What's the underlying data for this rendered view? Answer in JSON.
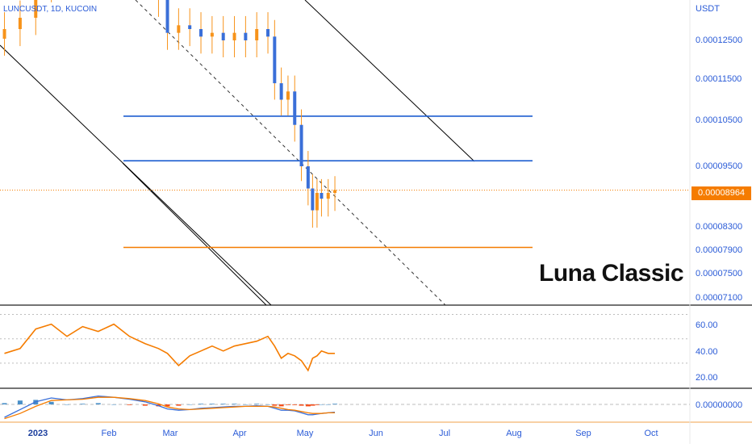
{
  "header": {
    "symbol_label": "LUNCUSDT, 1D, KUCOIN",
    "watermark": "Luna Classic"
  },
  "price_axis": {
    "unit": "USDT",
    "ticks": [
      "0.00012500",
      "0.00011500",
      "0.00010500",
      "0.00009500",
      "0.00008300",
      "0.00007900",
      "0.00007500",
      "0.00007100"
    ],
    "last_price_label": "0.00008964"
  },
  "rsi_axis": {
    "ticks": [
      "60.00",
      "40.00",
      "20.00"
    ]
  },
  "macd_axis": {
    "ticks": [
      "0.00000000"
    ]
  },
  "time_axis": {
    "ticks": [
      "2023",
      "Feb",
      "Mar",
      "Apr",
      "May",
      "Jun",
      "Jul",
      "Aug",
      "Sep",
      "Oct"
    ]
  },
  "colors": {
    "candle": "#f7931a",
    "candle_down": "#3a6fd8",
    "resistance": "#1e5fd1",
    "support": "#f57c00",
    "channel": "#000000",
    "rsi_line": "#f57c00",
    "macd_line": "#3a6fd8",
    "signal_line": "#f57c00",
    "hist_up": "#4a90c8",
    "hist_down": "#f4511e",
    "last_price_bg": "#f57c00"
  },
  "chart_data": [
    {
      "type": "candlestick",
      "title": "LUNCUSDT, 1D, KUCOIN",
      "ylabel": "USDT",
      "ylim": [
        7e-05,
        0.000135
      ],
      "x_axis": "date",
      "x_range": [
        "2022-12-20",
        "2023-10-25"
      ],
      "close_series": {
        "x": [
          "2022-12-22",
          "2022-12-29",
          "2023-01-05",
          "2023-01-12",
          "2023-01-19",
          "2023-01-26",
          "2023-02-02",
          "2023-02-09",
          "2023-02-16",
          "2023-02-23",
          "2023-03-01",
          "2023-03-05",
          "2023-03-10",
          "2023-03-15",
          "2023-03-20",
          "2023-03-25",
          "2023-03-30",
          "2023-04-04",
          "2023-04-09",
          "2023-04-14",
          "2023-04-19",
          "2023-04-22",
          "2023-04-25",
          "2023-04-28",
          "2023-05-01",
          "2023-05-04",
          "2023-05-07",
          "2023-05-09",
          "2023-05-11",
          "2023-05-13",
          "2023-05-16",
          "2023-05-19"
        ],
        "close": [
          0.000128,
          0.000131,
          0.00014,
          0.00015,
          0.000143,
          0.000148,
          0.000155,
          0.00015,
          0.000146,
          0.000148,
          0.000136,
          0.000127,
          0.000129,
          0.000128,
          0.000126,
          0.000127,
          0.000125,
          0.000127,
          0.000125,
          0.000128,
          0.000126,
          0.000114,
          0.00011,
          0.000112,
          0.000104,
          9.5e-05,
          9e-05,
          8.6e-05,
          8.9e-05,
          8.8e-05,
          8.9e-05,
          8.964e-05
        ]
      },
      "horizontal_levels": [
        {
          "value": 0.000106,
          "label": "resistance",
          "color": "#1e5fd1"
        },
        {
          "value": 9.62e-05,
          "label": "resistance",
          "color": "#1e5fd1"
        },
        {
          "value": 7.95e-05,
          "label": "support",
          "color": "#f57c00"
        }
      ],
      "last_price": 8.964e-05,
      "annotations": [
        "Luna Classic"
      ]
    },
    {
      "type": "line",
      "ylabel": "RSI",
      "ylim": [
        10,
        75
      ],
      "bands": [
        30,
        50,
        70
      ],
      "x": [
        "2022-12-22",
        "2022-12-29",
        "2023-01-05",
        "2023-01-12",
        "2023-01-19",
        "2023-01-26",
        "2023-02-02",
        "2023-02-09",
        "2023-02-16",
        "2023-02-23",
        "2023-03-01",
        "2023-03-05",
        "2023-03-10",
        "2023-03-15",
        "2023-03-20",
        "2023-03-25",
        "2023-03-30",
        "2023-04-04",
        "2023-04-09",
        "2023-04-14",
        "2023-04-19",
        "2023-04-22",
        "2023-04-25",
        "2023-04-28",
        "2023-05-01",
        "2023-05-04",
        "2023-05-07",
        "2023-05-09",
        "2023-05-11",
        "2023-05-13",
        "2023-05-16",
        "2023-05-19"
      ],
      "values": [
        38,
        42,
        58,
        62,
        52,
        60,
        56,
        62,
        52,
        46,
        42,
        38,
        28,
        36,
        40,
        44,
        40,
        44,
        46,
        48,
        52,
        44,
        34,
        38,
        36,
        32,
        24,
        34,
        36,
        40,
        38,
        38
      ]
    },
    {
      "type": "line",
      "ylabel": "MACD",
      "series": [
        {
          "values": [
            -2.0,
            -0.8,
            0.4,
            1.0,
            0.7,
            0.9,
            1.3,
            1.1,
            0.8,
            0.4,
            -0.2,
            -0.7,
            -0.9,
            -0.8,
            -0.6,
            -0.5,
            -0.4,
            -0.3,
            -0.3,
            -0.2,
            -0.3,
            -0.6,
            -0.9,
            -0.9,
            -1.0,
            -1.3,
            -1.6,
            -1.6,
            -1.5,
            -1.4,
            -1.3,
            -1.2
          ]
        },
        {
          "values": [
            -2.2,
            -1.4,
            -0.3,
            0.6,
            0.7,
            0.8,
            1.1,
            1.1,
            0.9,
            0.6,
            0.1,
            -0.4,
            -0.7,
            -0.8,
            -0.7,
            -0.6,
            -0.5,
            -0.4,
            -0.3,
            -0.3,
            -0.3,
            -0.4,
            -0.6,
            -0.8,
            -0.9,
            -1.1,
            -1.3,
            -1.4,
            -1.4,
            -1.4,
            -1.3,
            -1.3
          ]
        }
      ],
      "histogram": [
        0.2,
        0.6,
        0.7,
        0.4,
        0.0,
        0.1,
        0.2,
        0.0,
        -0.1,
        -0.2,
        -0.3,
        -0.3,
        -0.2,
        0.0,
        0.1,
        0.1,
        0.1,
        0.1,
        0.0,
        0.1,
        0.0,
        -0.2,
        -0.3,
        -0.1,
        -0.1,
        -0.2,
        -0.3,
        -0.2,
        -0.1,
        0.0,
        0.0,
        0.1
      ],
      "zero_line": 0.0
    }
  ]
}
